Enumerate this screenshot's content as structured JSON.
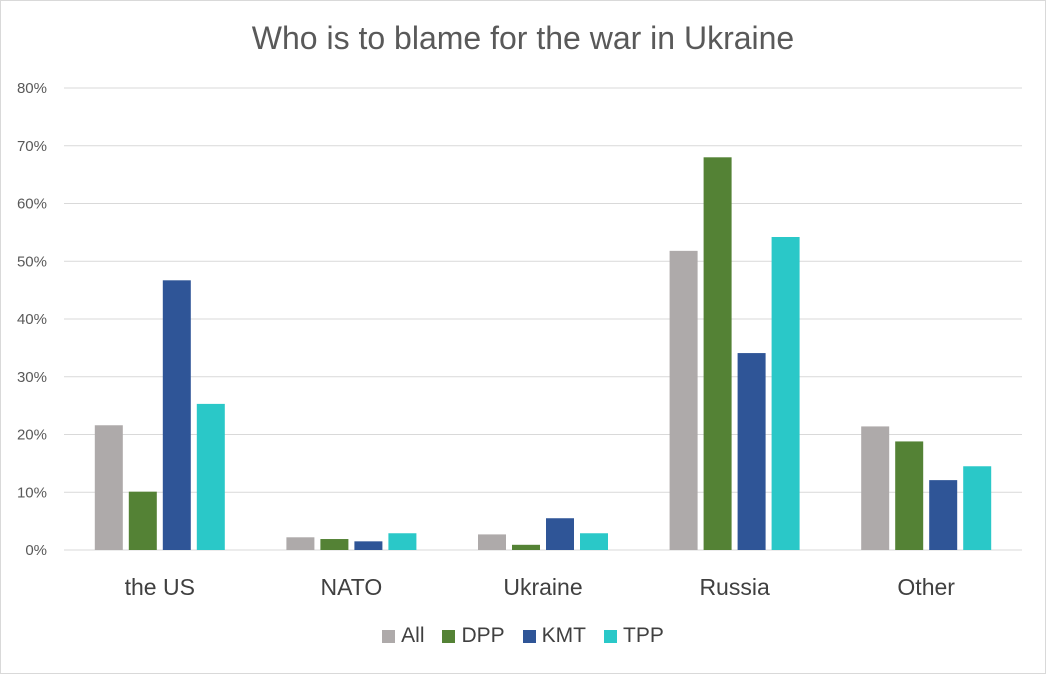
{
  "chart_data": {
    "type": "bar",
    "title": "Who is to blame for the war in Ukraine",
    "categories": [
      "the US",
      "NATO",
      "Ukraine",
      "Russia",
      "Other"
    ],
    "series": [
      {
        "name": "All",
        "color": "#aeaaaa",
        "values": [
          21.6,
          2.2,
          2.7,
          51.8,
          21.4
        ]
      },
      {
        "name": "DPP",
        "color": "#548235",
        "values": [
          10.1,
          1.9,
          0.9,
          68.0,
          18.8
        ]
      },
      {
        "name": "KMT",
        "color": "#2f5597",
        "values": [
          46.7,
          1.5,
          5.5,
          34.1,
          12.1
        ]
      },
      {
        "name": "TPP",
        "color": "#2ac8c8",
        "values": [
          25.3,
          2.9,
          2.9,
          54.2,
          14.5
        ]
      }
    ],
    "ylim": [
      0,
      80
    ],
    "yticks": [
      "0%",
      "10%",
      "20%",
      "30%",
      "40%",
      "50%",
      "60%",
      "70%",
      "80%"
    ],
    "grid": true,
    "legend_position": "bottom"
  }
}
